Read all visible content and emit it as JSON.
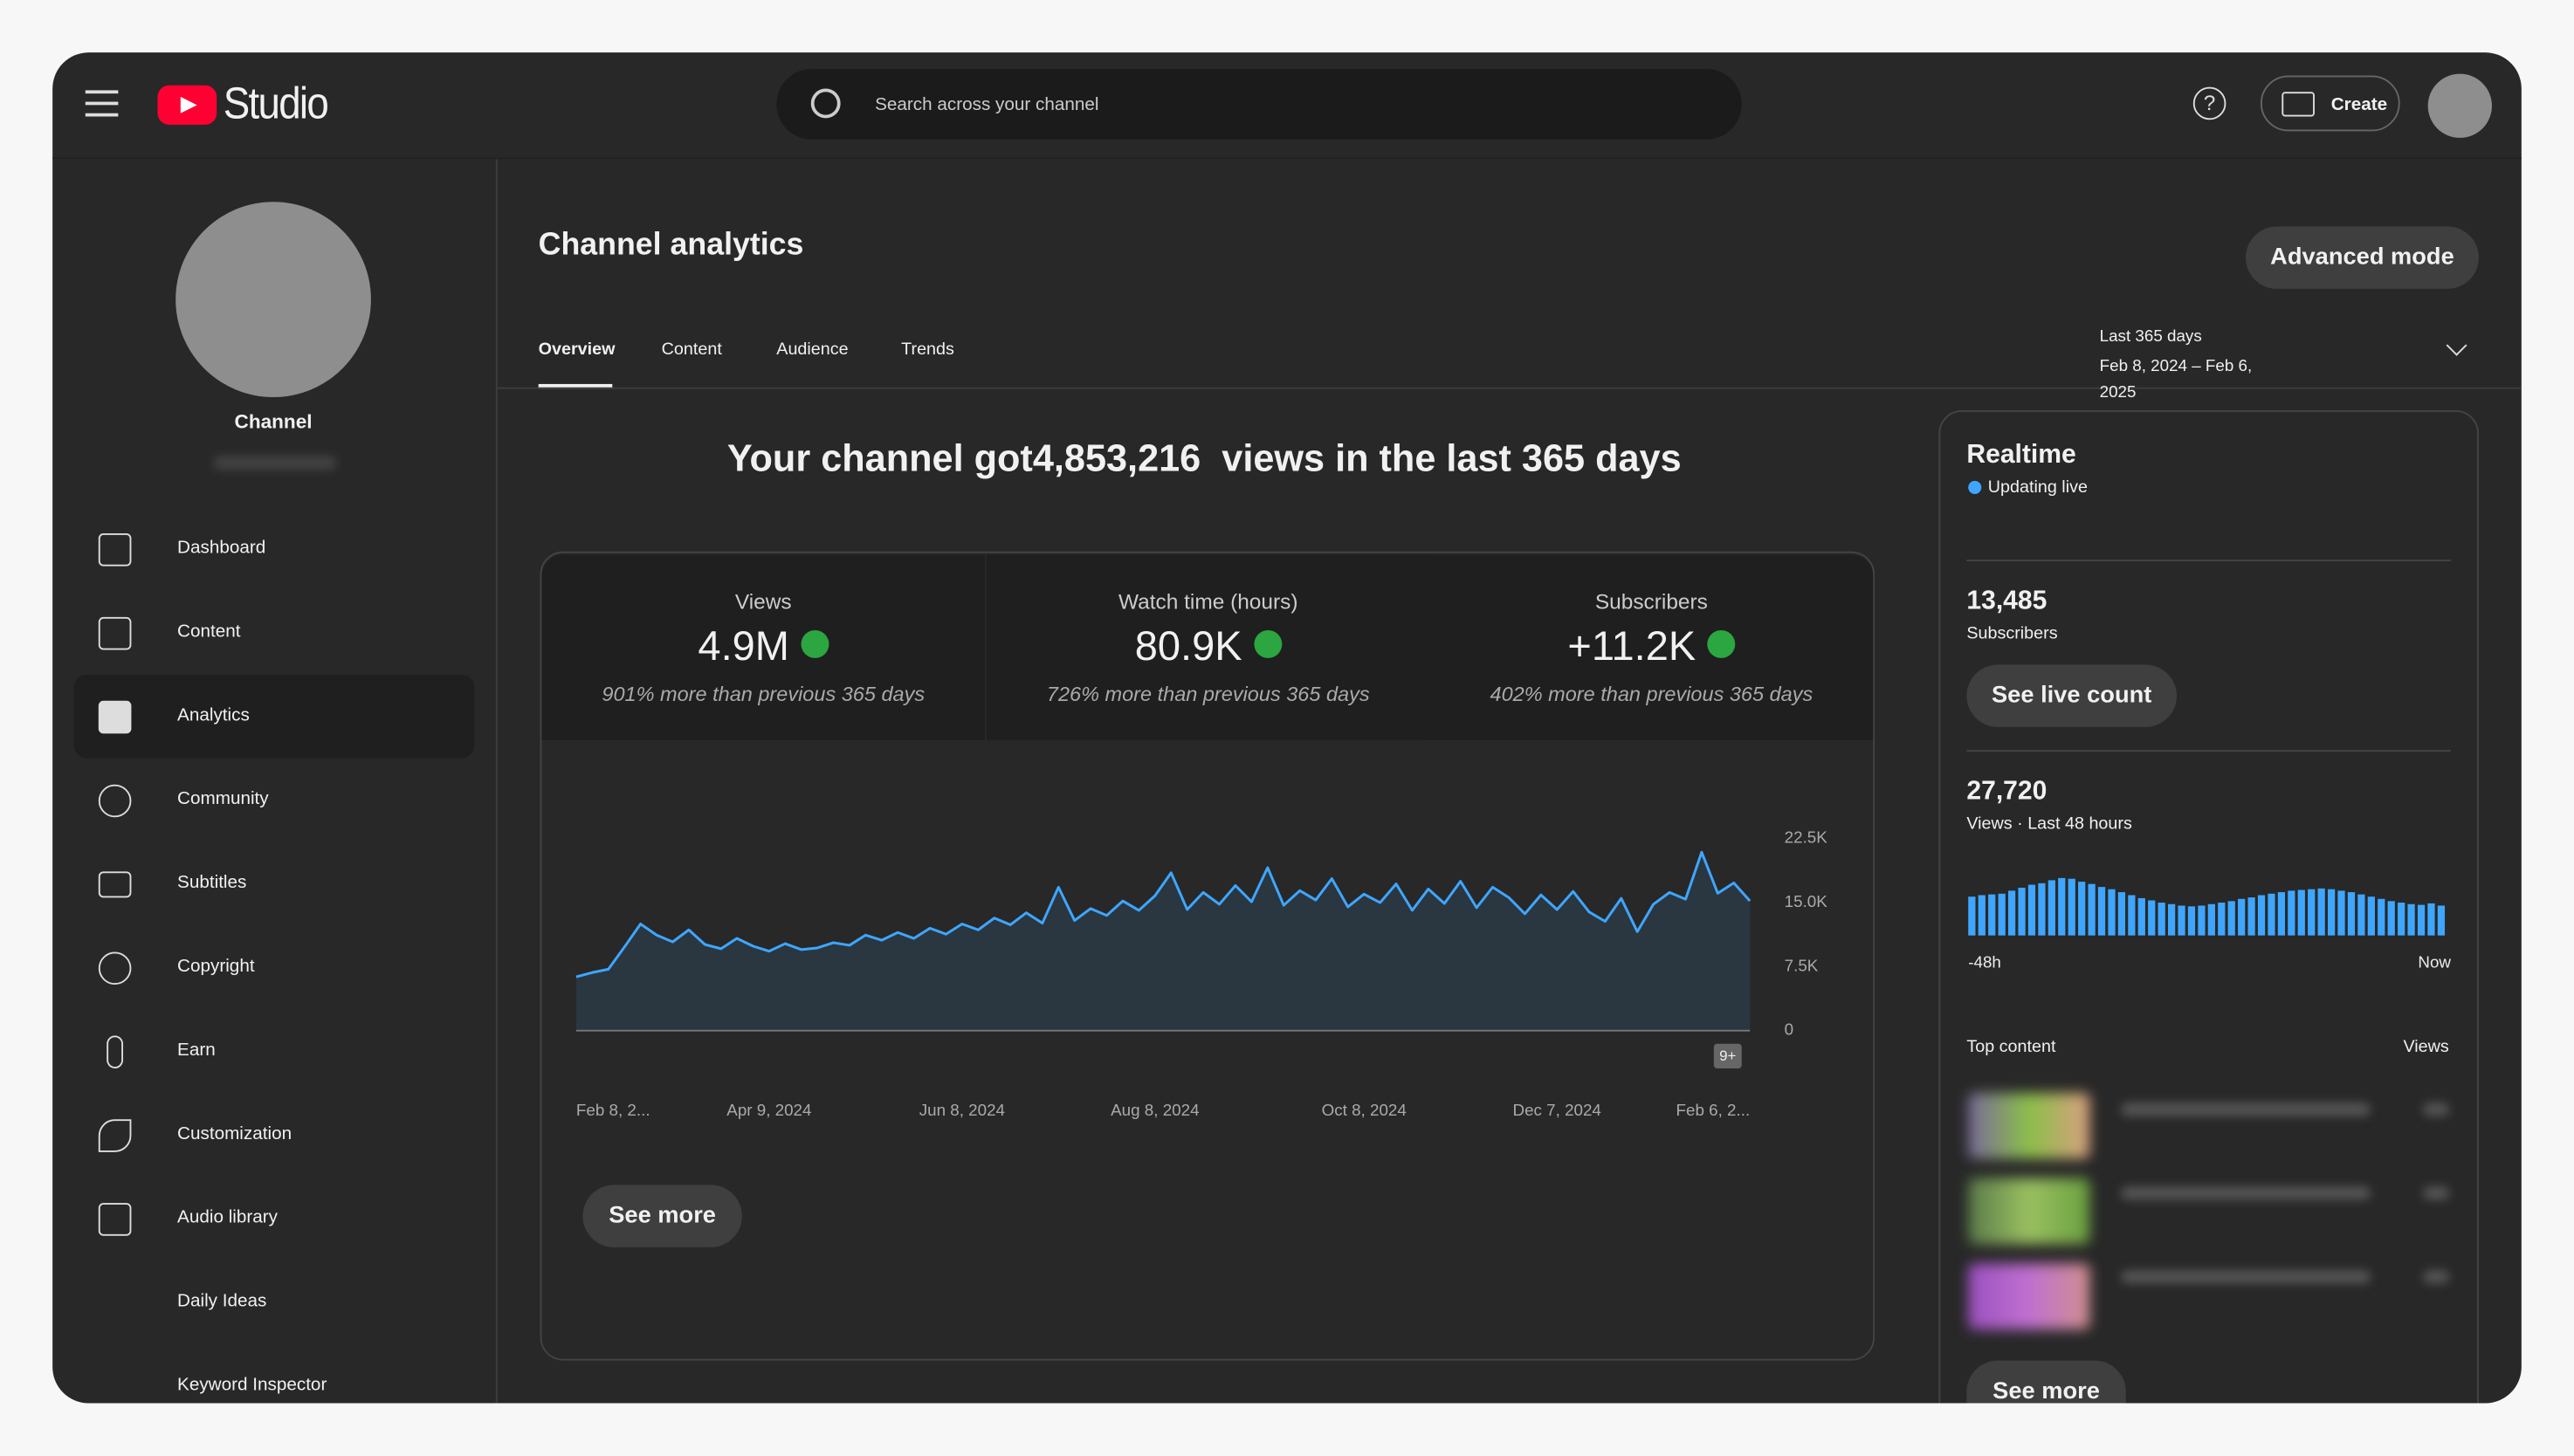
{
  "header": {
    "logo_text": "Studio",
    "search_placeholder": "Search across your channel",
    "create": "Create"
  },
  "sidebar": {
    "channel_label": "Channel",
    "nav": [
      "Dashboard",
      "Content",
      "Analytics",
      "Community",
      "Subtitles",
      "Copyright",
      "Earn",
      "Customization",
      "Audio library",
      "Daily Ideas",
      "Keyword Inspector"
    ]
  },
  "page": {
    "title": "Channel analytics",
    "advanced_mode": "Advanced mode",
    "tabs": [
      "Overview",
      "Content",
      "Audience",
      "Trends"
    ],
    "date_range": {
      "label": "Last 365 days",
      "dates": "Feb 8, 2024 – Feb 6, 2025"
    }
  },
  "summary": {
    "prefix": "Your channel got",
    "value": "4,853,216",
    "suffix": "views in the last 365 days"
  },
  "metrics": [
    {
      "label": "Views",
      "value": "4.9M",
      "note": "901% more than previous 365 days"
    },
    {
      "label": "Watch time (hours)",
      "value": "80.9K",
      "note": "726% more than previous 365 days"
    },
    {
      "label": "Subscribers",
      "value": "+11.2K",
      "note": "402% more than previous 365 days"
    }
  ],
  "chart_data": [
    {
      "type": "area",
      "color": "#3ea6ff",
      "values": [
        6300,
        6800,
        7200,
        9800,
        12500,
        11200,
        10400,
        11800,
        10100,
        9600,
        10800,
        9900,
        9300,
        10200,
        9500,
        9700,
        10300,
        10000,
        11200,
        10600,
        11500,
        10800,
        12000,
        11300,
        12500,
        11800,
        13200,
        12400,
        13800,
        12600,
        16800,
        12900,
        14300,
        13500,
        15200,
        14100,
        15800,
        18500,
        14200,
        16200,
        14800,
        17000,
        15100,
        19100,
        14700,
        16400,
        15300,
        17800,
        14500,
        16000,
        15000,
        17200,
        14100,
        16600,
        14900,
        17500,
        14400,
        16800,
        15600,
        13700,
        15900,
        14200,
        16300,
        13900,
        12800,
        15500,
        11600,
        14800,
        16200,
        15400,
        20900,
        16100,
        17300,
        15200
      ],
      "ylim": [
        0,
        22500
      ],
      "yticks": [
        0,
        {
          "value": 7500,
          "label": "7.5K"
        },
        {
          "value": 15000,
          "label": "15.0K"
        },
        {
          "value": 22500,
          "label": "22.5K"
        }
      ],
      "xlim": [
        0,
        73
      ],
      "xticks": [
        {
          "value": 0,
          "label": "Feb 8, 2..."
        },
        {
          "value": 12,
          "label": "Apr 9, 2024"
        },
        {
          "value": 24,
          "label": "Jun 8, 2024"
        },
        {
          "value": 36,
          "label": "Aug 8, 2024"
        },
        {
          "value": 49,
          "label": "Oct 8, 2024"
        },
        {
          "value": 61,
          "label": "Dec 7, 2024"
        },
        {
          "value": 73,
          "label": "Feb 6, 2..."
        }
      ],
      "badge": "9+",
      "see_more": "See more"
    },
    {
      "type": "bar",
      "color": "#3ea6ff",
      "values": [
        520,
        540,
        550,
        560,
        600,
        640,
        680,
        700,
        740,
        770,
        760,
        720,
        690,
        650,
        620,
        580,
        540,
        500,
        470,
        440,
        420,
        400,
        390,
        400,
        420,
        440,
        460,
        490,
        510,
        540,
        560,
        580,
        600,
        610,
        620,
        630,
        620,
        600,
        580,
        550,
        520,
        490,
        460,
        440,
        420,
        410,
        430,
        400
      ],
      "start_label": "-48h",
      "end_label": "Now"
    }
  ],
  "realtime": {
    "title": "Realtime",
    "status": "Updating live",
    "subscribers": {
      "value": "13,485",
      "label": "Subscribers"
    },
    "see_live_count": "See live count",
    "views": {
      "value": "27,720",
      "label": "Views · Last 48 hours"
    },
    "top_content": {
      "label": "Top content",
      "views_label": "Views"
    },
    "see_more": "See more"
  }
}
